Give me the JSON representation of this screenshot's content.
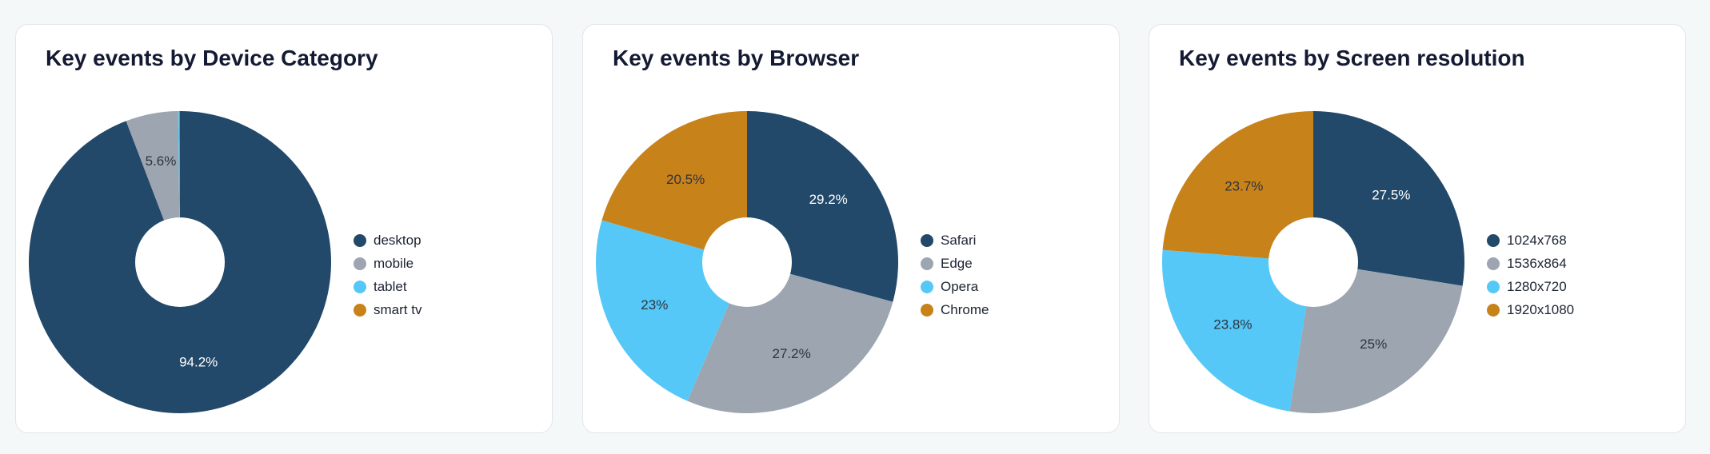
{
  "chart_data": [
    {
      "type": "pie",
      "title": "Key events by Device Category",
      "categories": [
        "desktop",
        "mobile",
        "tablet",
        "smart tv"
      ],
      "values": [
        94.2,
        5.6,
        0.1,
        0.1
      ],
      "labels": [
        "94.2%",
        "5.6%",
        "",
        ""
      ],
      "colors": [
        "#22486a",
        "#9ca5b0",
        "#55c8f7",
        "#c8821a"
      ],
      "label_colors": [
        "#ffffff",
        "#2d3440",
        "#2d3440",
        "#2d3440"
      ],
      "legend_position": "right"
    },
    {
      "type": "pie",
      "title": "Key events by Browser",
      "categories": [
        "Safari",
        "Edge",
        "Opera",
        "Chrome"
      ],
      "values": [
        29.2,
        27.2,
        23,
        20.5
      ],
      "labels": [
        "29.2%",
        "27.2%",
        "23%",
        "20.5%"
      ],
      "colors": [
        "#22486a",
        "#9ca5b0",
        "#55c8f7",
        "#c8821a"
      ],
      "label_colors": [
        "#ffffff",
        "#2d3440",
        "#2d3440",
        "#2d3440"
      ],
      "legend_position": "right"
    },
    {
      "type": "pie",
      "title": "Key events by Screen resolution",
      "categories": [
        "1024x768",
        "1536x864",
        "1280x720",
        "1920x1080"
      ],
      "values": [
        27.5,
        25,
        23.8,
        23.7
      ],
      "labels": [
        "27.5%",
        "25%",
        "23.8%",
        "23.7%"
      ],
      "colors": [
        "#22486a",
        "#9ca5b0",
        "#55c8f7",
        "#c8821a"
      ],
      "label_colors": [
        "#ffffff",
        "#2d3440",
        "#2d3440",
        "#2d3440"
      ],
      "legend_position": "right"
    }
  ]
}
